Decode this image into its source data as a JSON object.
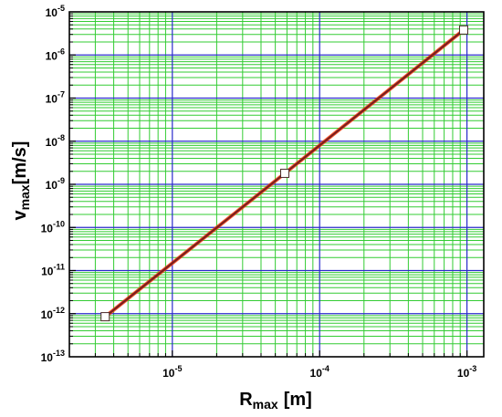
{
  "chart_data": {
    "type": "line",
    "title": "",
    "xlabel": {
      "main": "R",
      "sub": "max",
      "unit": "[m]"
    },
    "ylabel": {
      "main": "v",
      "sub": "max",
      "unit": "[m/s]"
    },
    "x_scale": "log",
    "y_scale": "log",
    "xlim": [
      2e-06,
      0.0013
    ],
    "ylim": [
      1e-13,
      1e-05
    ],
    "x_ticks": [
      {
        "base": "10",
        "exp": "-5",
        "value": 1e-05
      },
      {
        "base": "10",
        "exp": "-4",
        "value": 0.0001
      },
      {
        "base": "10",
        "exp": "-3",
        "value": 0.001
      }
    ],
    "y_ticks": [
      {
        "base": "10",
        "exp": "-13",
        "value": 1e-13
      },
      {
        "base": "10",
        "exp": "-12",
        "value": 1e-12
      },
      {
        "base": "10",
        "exp": "-11",
        "value": 1e-11
      },
      {
        "base": "10",
        "exp": "-10",
        "value": 1e-10
      },
      {
        "base": "10",
        "exp": "-9",
        "value": 1e-09
      },
      {
        "base": "10",
        "exp": "-8",
        "value": 1e-08
      },
      {
        "base": "10",
        "exp": "-7",
        "value": 1e-07
      },
      {
        "base": "10",
        "exp": "-6",
        "value": 1e-06
      },
      {
        "base": "10",
        "exp": "-5",
        "value": 1e-05
      }
    ],
    "grid": true,
    "legend": "none",
    "series": [
      {
        "line_color": "#7a1f1f",
        "highlight_color": "#ff3300",
        "marker": "open-square",
        "points": [
          {
            "x": 3.5e-06,
            "y": 8.5e-13
          },
          {
            "x": 5.8e-05,
            "y": 1.8e-09
          },
          {
            "x": 0.00095,
            "y": 3.8e-06
          }
        ]
      }
    ],
    "colors": {
      "major_grid": "#2b2bcc",
      "minor_grid": "#33cc33",
      "frame": "#000000",
      "marker_fill": "#ffffff",
      "marker_edge": "#4d2b2b"
    }
  }
}
